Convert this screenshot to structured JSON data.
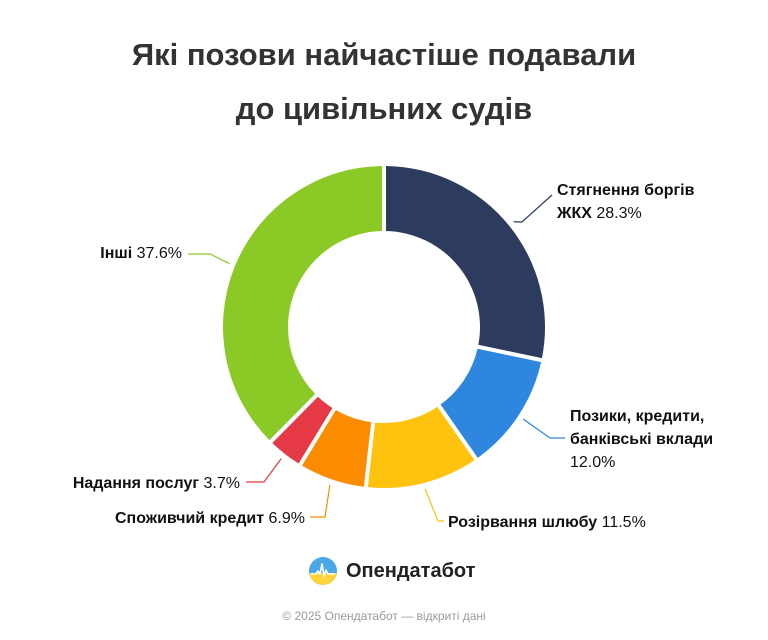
{
  "title_lines": [
    "Які позови найчастіше подавали",
    "до цивільних судів"
  ],
  "chart_data": {
    "type": "pie",
    "variant": "donut",
    "title": "Які позови найчастіше подавали до цивільних судів",
    "slices": [
      {
        "name_lines": [
          "Стягнення боргів",
          "ЖКХ"
        ],
        "value": 28.3,
        "value_label": "28.3%",
        "color": "#2d3b5e"
      },
      {
        "name_lines": [
          "Позики, кредити,",
          "банківські вклади"
        ],
        "value": 12.0,
        "value_label": "12.0%",
        "color": "#2e86de"
      },
      {
        "name_lines": [
          "Розірвання шлюбу"
        ],
        "value": 11.5,
        "value_label": "11.5%",
        "color": "#ffc20e"
      },
      {
        "name_lines": [
          "Споживчий кредит"
        ],
        "value": 6.9,
        "value_label": "6.9%",
        "color": "#fb8c00"
      },
      {
        "name_lines": [
          "Надання послуг"
        ],
        "value": 3.7,
        "value_label": "3.7%",
        "color": "#e53945"
      },
      {
        "name_lines": [
          "Інші"
        ],
        "value": 37.6,
        "value_label": "37.6%",
        "color": "#8ac926"
      }
    ]
  },
  "brand": {
    "name": "Опендатабот",
    "logo_icon": "opendatabot-logo-icon"
  },
  "footer": "© 2025 Опендатабот — відкриті дані"
}
